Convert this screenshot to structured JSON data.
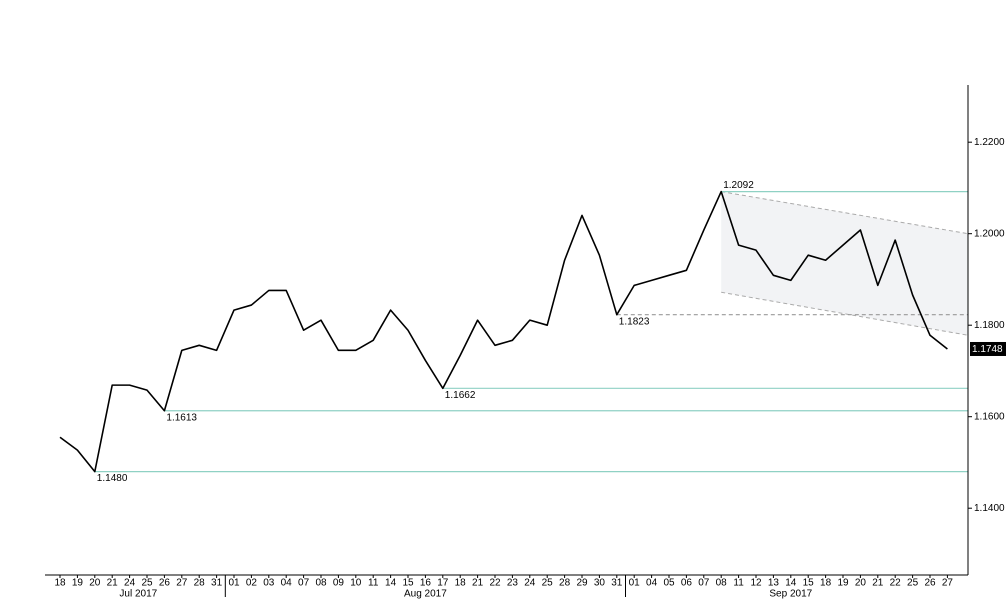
{
  "chart_data": {
    "type": "line",
    "categories": [
      "18",
      "19",
      "20",
      "21",
      "24",
      "25",
      "26",
      "27",
      "28",
      "31",
      "01",
      "02",
      "03",
      "04",
      "07",
      "08",
      "09",
      "10",
      "11",
      "14",
      "15",
      "16",
      "17",
      "18",
      "21",
      "22",
      "23",
      "24",
      "25",
      "28",
      "29",
      "30",
      "31",
      "01",
      "04",
      "05",
      "06",
      "07",
      "08",
      "11",
      "12",
      "13",
      "14",
      "15",
      "18",
      "19",
      "20",
      "21",
      "22",
      "25",
      "26",
      "27"
    ],
    "months": [
      "Jul 2017",
      "Aug 2017",
      "Sep 2017"
    ],
    "series": [
      {
        "color": "#000000",
        "values": [
          1.1555,
          1.1527,
          1.148,
          1.1669,
          1.1669,
          1.1658,
          1.1613,
          1.1745,
          1.1756,
          1.1745,
          1.1833,
          1.1844,
          1.1876,
          1.1876,
          1.1789,
          1.1811,
          1.1745,
          1.1745,
          1.1767,
          1.1833,
          1.1789,
          1.1723,
          1.1662,
          1.1734,
          1.1811,
          1.1756,
          1.1767,
          1.1811,
          1.18,
          1.1942,
          1.204,
          1.1953,
          1.1823,
          1.1887,
          1.1898,
          1.1909,
          1.192,
          1.2008,
          1.2092,
          1.1975,
          1.1964,
          1.1909,
          1.1898,
          1.1953,
          1.1942,
          1.1975,
          1.2008,
          1.1887,
          1.1986,
          1.1866,
          1.1778,
          1.1748
        ]
      }
    ],
    "ylim": [
      1.1254,
      1.2325
    ],
    "yticks": [
      {
        "value": 1.14,
        "label": "1.1400"
      },
      {
        "value": 1.16,
        "label": "1.1600"
      },
      {
        "value": 1.18,
        "label": "1.1800"
      },
      {
        "value": 1.2,
        "label": "1.2000"
      },
      {
        "value": 1.22,
        "label": "1.2200"
      }
    ],
    "levels": [
      {
        "value": 1.2092,
        "label": "1.2092",
        "color": "#8fd1c4",
        "style": "solid"
      },
      {
        "value": 1.1823,
        "label": "1.1823",
        "color": "#999999",
        "style": "dashed"
      },
      {
        "value": 1.1662,
        "label": "1.1662",
        "color": "#8fd1c4",
        "style": "solid"
      },
      {
        "value": 1.1613,
        "label": "1.1613",
        "color": "#8fd1c4",
        "style": "solid"
      },
      {
        "value": 1.148,
        "label": "1.1480",
        "color": "#8fd1c4",
        "style": "solid"
      }
    ],
    "channel": {
      "upper": [
        1.2092,
        1.2
      ],
      "lower": [
        1.1872,
        1.1778
      ],
      "color": "#aaaaaa",
      "fill": "#f2f3f5"
    },
    "last_price": {
      "value": 1.1748,
      "label": "1.1748"
    }
  }
}
